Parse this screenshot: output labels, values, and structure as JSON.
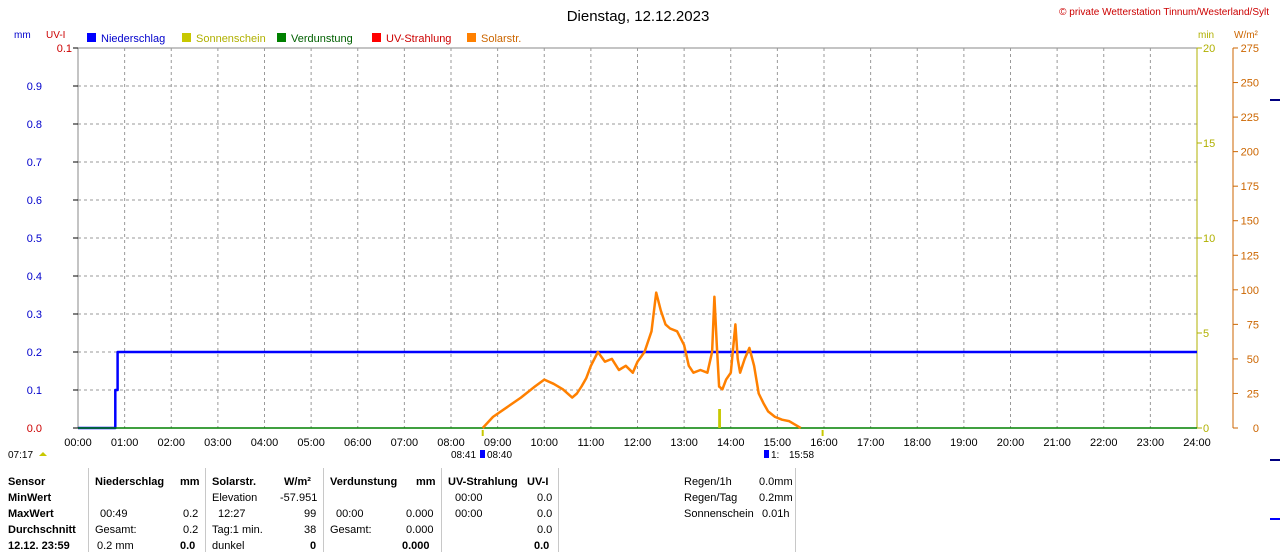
{
  "title": "Dienstag, 12.12.2023",
  "copyright": "© private Wetterstation Tinnum/Westerland/Sylt",
  "units": {
    "mm": "mm",
    "uvi": "UV-I",
    "min": "min",
    "wm2": "W/m²"
  },
  "legend": [
    {
      "label": "Niederschlag",
      "color": "#0000ff"
    },
    {
      "label": "Sonnenschein",
      "color": "#c8c800"
    },
    {
      "label": "Verdunstung",
      "color": "#008000"
    },
    {
      "label": "UV-Strahlung",
      "color": "#ff0000"
    },
    {
      "label": "Solarstr.",
      "color": "#ff8000"
    }
  ],
  "chart_data": {
    "type": "line",
    "x_range_hours": [
      0,
      24
    ],
    "x_ticks": [
      "00:00",
      "01:00",
      "02:00",
      "03:00",
      "04:00",
      "05:00",
      "06:00",
      "07:00",
      "08:00",
      "09:00",
      "10:00",
      "11:00",
      "12:00",
      "13:00",
      "14:00",
      "15:00",
      "16:00",
      "17:00",
      "18:00",
      "19:00",
      "20:00",
      "21:00",
      "22:00",
      "23:00",
      "24:00"
    ],
    "left_axis": {
      "ylim": [
        0,
        1.0
      ],
      "ticks": [
        "0.0",
        "0.1",
        "0.2",
        "0.3",
        "0.4",
        "0.5",
        "0.6",
        "0.7",
        "0.8",
        "0.9"
      ],
      "top_label": "0.1"
    },
    "right_axis_min": {
      "ylim": [
        0,
        20
      ],
      "ticks": [
        "0",
        "5",
        "10",
        "15",
        "20"
      ]
    },
    "right_axis_wm2": {
      "ylim": [
        0,
        275
      ],
      "ticks": [
        "0",
        "25",
        "50",
        "75",
        "100",
        "125",
        "150",
        "175",
        "200",
        "225",
        "250",
        "275"
      ]
    },
    "grid": true,
    "series": [
      {
        "name": "Niederschlag",
        "axis": "left",
        "color": "#0000ff",
        "x": [
          0.0,
          0.8,
          0.8,
          0.85,
          0.85,
          24.0
        ],
        "y": [
          0.0,
          0.0,
          0.1,
          0.1,
          0.2,
          0.2
        ]
      },
      {
        "name": "Verdunstung",
        "axis": "left",
        "color": "#008000",
        "x": [
          0.0,
          24.0
        ],
        "y": [
          0.0,
          0.0
        ]
      },
      {
        "name": "Solarstr.",
        "axis": "wm2",
        "color": "#ff8000",
        "x": [
          8.68,
          8.9,
          9.2,
          9.5,
          9.8,
          10.0,
          10.2,
          10.4,
          10.6,
          10.7,
          10.8,
          10.9,
          11.0,
          11.15,
          11.3,
          11.45,
          11.6,
          11.75,
          11.9,
          12.0,
          12.15,
          12.3,
          12.4,
          12.5,
          12.6,
          12.7,
          12.85,
          13.0,
          13.1,
          13.2,
          13.35,
          13.5,
          13.6,
          13.65,
          13.7,
          13.75,
          13.82,
          13.9,
          14.0,
          14.1,
          14.15,
          14.2,
          14.3,
          14.4,
          14.5,
          14.6,
          14.7,
          14.8,
          14.95,
          15.1,
          15.25,
          15.4,
          15.5
        ],
        "y": [
          0,
          8,
          15,
          22,
          30,
          35,
          32,
          28,
          22,
          25,
          30,
          36,
          45,
          55,
          48,
          50,
          42,
          45,
          40,
          48,
          55,
          70,
          98,
          85,
          75,
          72,
          70,
          60,
          45,
          40,
          42,
          40,
          55,
          95,
          60,
          30,
          28,
          35,
          40,
          75,
          50,
          40,
          50,
          58,
          45,
          25,
          18,
          12,
          8,
          6,
          5,
          2,
          0
        ]
      },
      {
        "name": "Sonnenschein",
        "axis": "min",
        "color": "#c8c800",
        "x": [
          13.73,
          13.79
        ],
        "y": [
          1.0,
          1.0
        ]
      },
      {
        "name": "UV-Strahlung",
        "axis": "left",
        "color": "#ff0000",
        "x": [],
        "y": []
      }
    ],
    "bottom_markers": {
      "left_time": "07:17",
      "mid_left": "08:41",
      "mid_right": "08:40",
      "right_a": "1:",
      "right_b": "15:58"
    }
  },
  "table": {
    "sensor": {
      "header": "Sensor",
      "rows": [
        "MinWert",
        "MaxWert",
        "Durchschnitt",
        "12.12. 23:59"
      ]
    },
    "niederschlag": {
      "header": "Niederschlag",
      "unit": "mm",
      "rows": [
        [
          "",
          ""
        ],
        [
          "00:49",
          "0.2"
        ],
        [
          "Gesamt:",
          "0.2"
        ],
        [
          "0.2 mm",
          "0.0"
        ]
      ]
    },
    "solar": {
      "header": "Solarstr.",
      "unit": "W/m²",
      "rows": [
        [
          "Elevation",
          "-57.951"
        ],
        [
          "12:27",
          "99"
        ],
        [
          "Tag:1 min.",
          "38"
        ],
        [
          "dunkel",
          "0"
        ]
      ]
    },
    "verdunstung": {
      "header": "Verdunstung",
      "unit": "mm",
      "rows": [
        [
          "",
          ""
        ],
        [
          "00:00",
          "0.000"
        ],
        [
          "Gesamt:",
          "0.000"
        ],
        [
          "",
          "0.000"
        ]
      ]
    },
    "uv": {
      "header": "UV-Strahlung",
      "unit": "UV-I",
      "rows": [
        [
          "00:00",
          "0.0"
        ],
        [
          "00:00",
          "0.0"
        ],
        [
          "",
          "0.0"
        ],
        [
          "",
          "0.0"
        ]
      ]
    },
    "summary": [
      {
        "label": "Regen/1h",
        "value": "0.0mm"
      },
      {
        "label": "Regen/Tag",
        "value": "0.2mm"
      },
      {
        "label": "Sonnenschein",
        "value": "0.01h"
      }
    ]
  }
}
